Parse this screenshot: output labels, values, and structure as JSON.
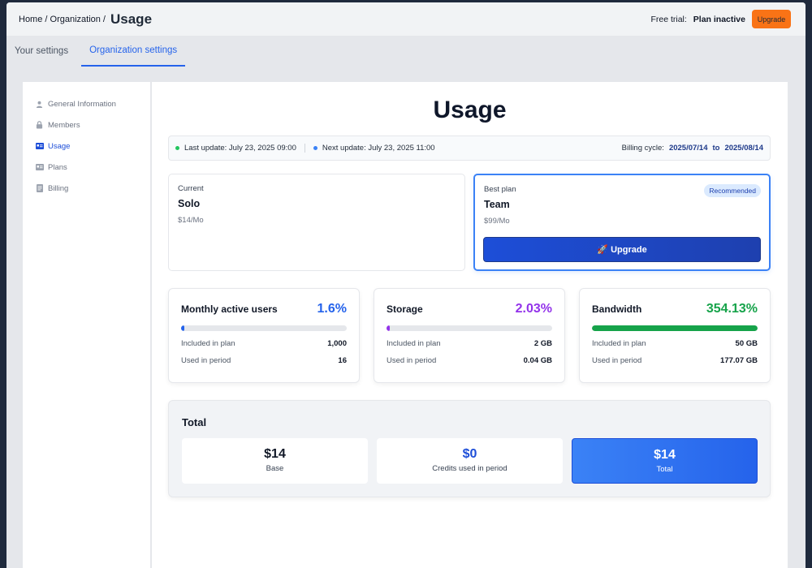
{
  "header": {
    "breadcrumb": "Home / Organization /",
    "title": "Usage",
    "trial_label": "Free trial:",
    "trial_status": "Plan inactive",
    "upgrade_label": "Upgrade"
  },
  "tabs": [
    {
      "label": "Your settings",
      "active": false
    },
    {
      "label": "Organization settings",
      "active": true
    }
  ],
  "sidebar": {
    "items": [
      {
        "label": "General Information",
        "icon": "user-icon"
      },
      {
        "label": "Members",
        "icon": "lock-icon"
      },
      {
        "label": "Usage",
        "icon": "id-card-icon",
        "active": true
      },
      {
        "label": "Plans",
        "icon": "id-card-icon"
      },
      {
        "label": "Billing",
        "icon": "document-icon"
      }
    ]
  },
  "main": {
    "title": "Usage",
    "updates": {
      "last": "Last update: July 23, 2025 09:00",
      "next": "Next update: July 23, 2025 11:00",
      "billing_label": "Billing cycle:",
      "billing_start": "2025/07/14",
      "billing_to": "to",
      "billing_end": "2025/08/14"
    },
    "current_plan": {
      "label": "Current",
      "name": "Solo",
      "price": "$14/Mo"
    },
    "best_plan": {
      "label": "Best plan",
      "badge": "Recommended",
      "name": "Team",
      "price": "$99/Mo",
      "button": "🚀 Upgrade"
    },
    "metrics": [
      {
        "title": "Monthly active users",
        "percent": "1.6%",
        "fill": 0.016,
        "color": "#2563eb",
        "included_label": "Included in plan",
        "included": "1,000",
        "used_label": "Used in period",
        "used": "16"
      },
      {
        "title": "Storage",
        "percent": "2.03%",
        "fill": 0.0203,
        "color": "#9333ea",
        "included_label": "Included in plan",
        "included": "2 GB",
        "used_label": "Used in period",
        "used": "0.04 GB"
      },
      {
        "title": "Bandwidth",
        "percent": "354.13%",
        "fill": 1.0,
        "color": "#16a34a",
        "included_label": "Included in plan",
        "included": "50 GB",
        "used_label": "Used in period",
        "used": "177.07 GB"
      }
    ],
    "total": {
      "title": "Total",
      "base_amount": "$14",
      "base_label": "Base",
      "credits_amount": "$0",
      "credits_label": "Credits used in period",
      "total_amount": "$14",
      "total_label": "Total"
    }
  }
}
